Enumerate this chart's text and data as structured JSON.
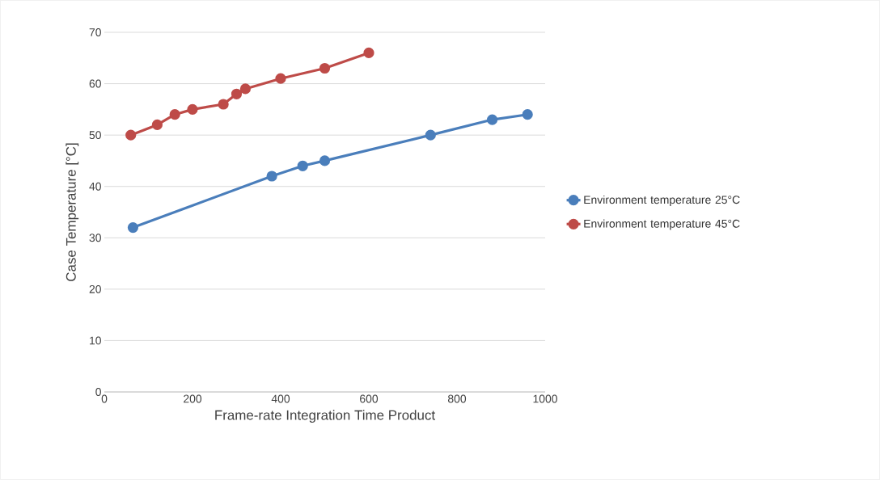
{
  "chart_data": {
    "type": "line",
    "xlabel": "Frame-rate Integration Time Product",
    "ylabel": "Case Temperature [°C]",
    "xlim": [
      0,
      1000
    ],
    "ylim": [
      0,
      70
    ],
    "xticks": [
      0,
      200,
      400,
      600,
      800,
      1000
    ],
    "yticks": [
      0,
      10,
      20,
      30,
      40,
      50,
      60,
      70
    ],
    "grid": "y",
    "legend": "right",
    "marker": "circle",
    "line_style": "solid",
    "series": [
      {
        "name": "Environment temperature 25°C",
        "color": "#4a7ebb",
        "x": [
          65,
          380,
          450,
          500,
          740,
          880,
          960
        ],
        "values": [
          32,
          42,
          44,
          45,
          50,
          53,
          54
        ]
      },
      {
        "name": "Environment temperature 45°C",
        "color": "#be4b48",
        "x": [
          60,
          120,
          160,
          200,
          270,
          300,
          320,
          400,
          500,
          600
        ],
        "values": [
          50,
          52,
          54,
          55,
          56,
          58,
          59,
          61,
          63,
          66
        ]
      }
    ]
  }
}
